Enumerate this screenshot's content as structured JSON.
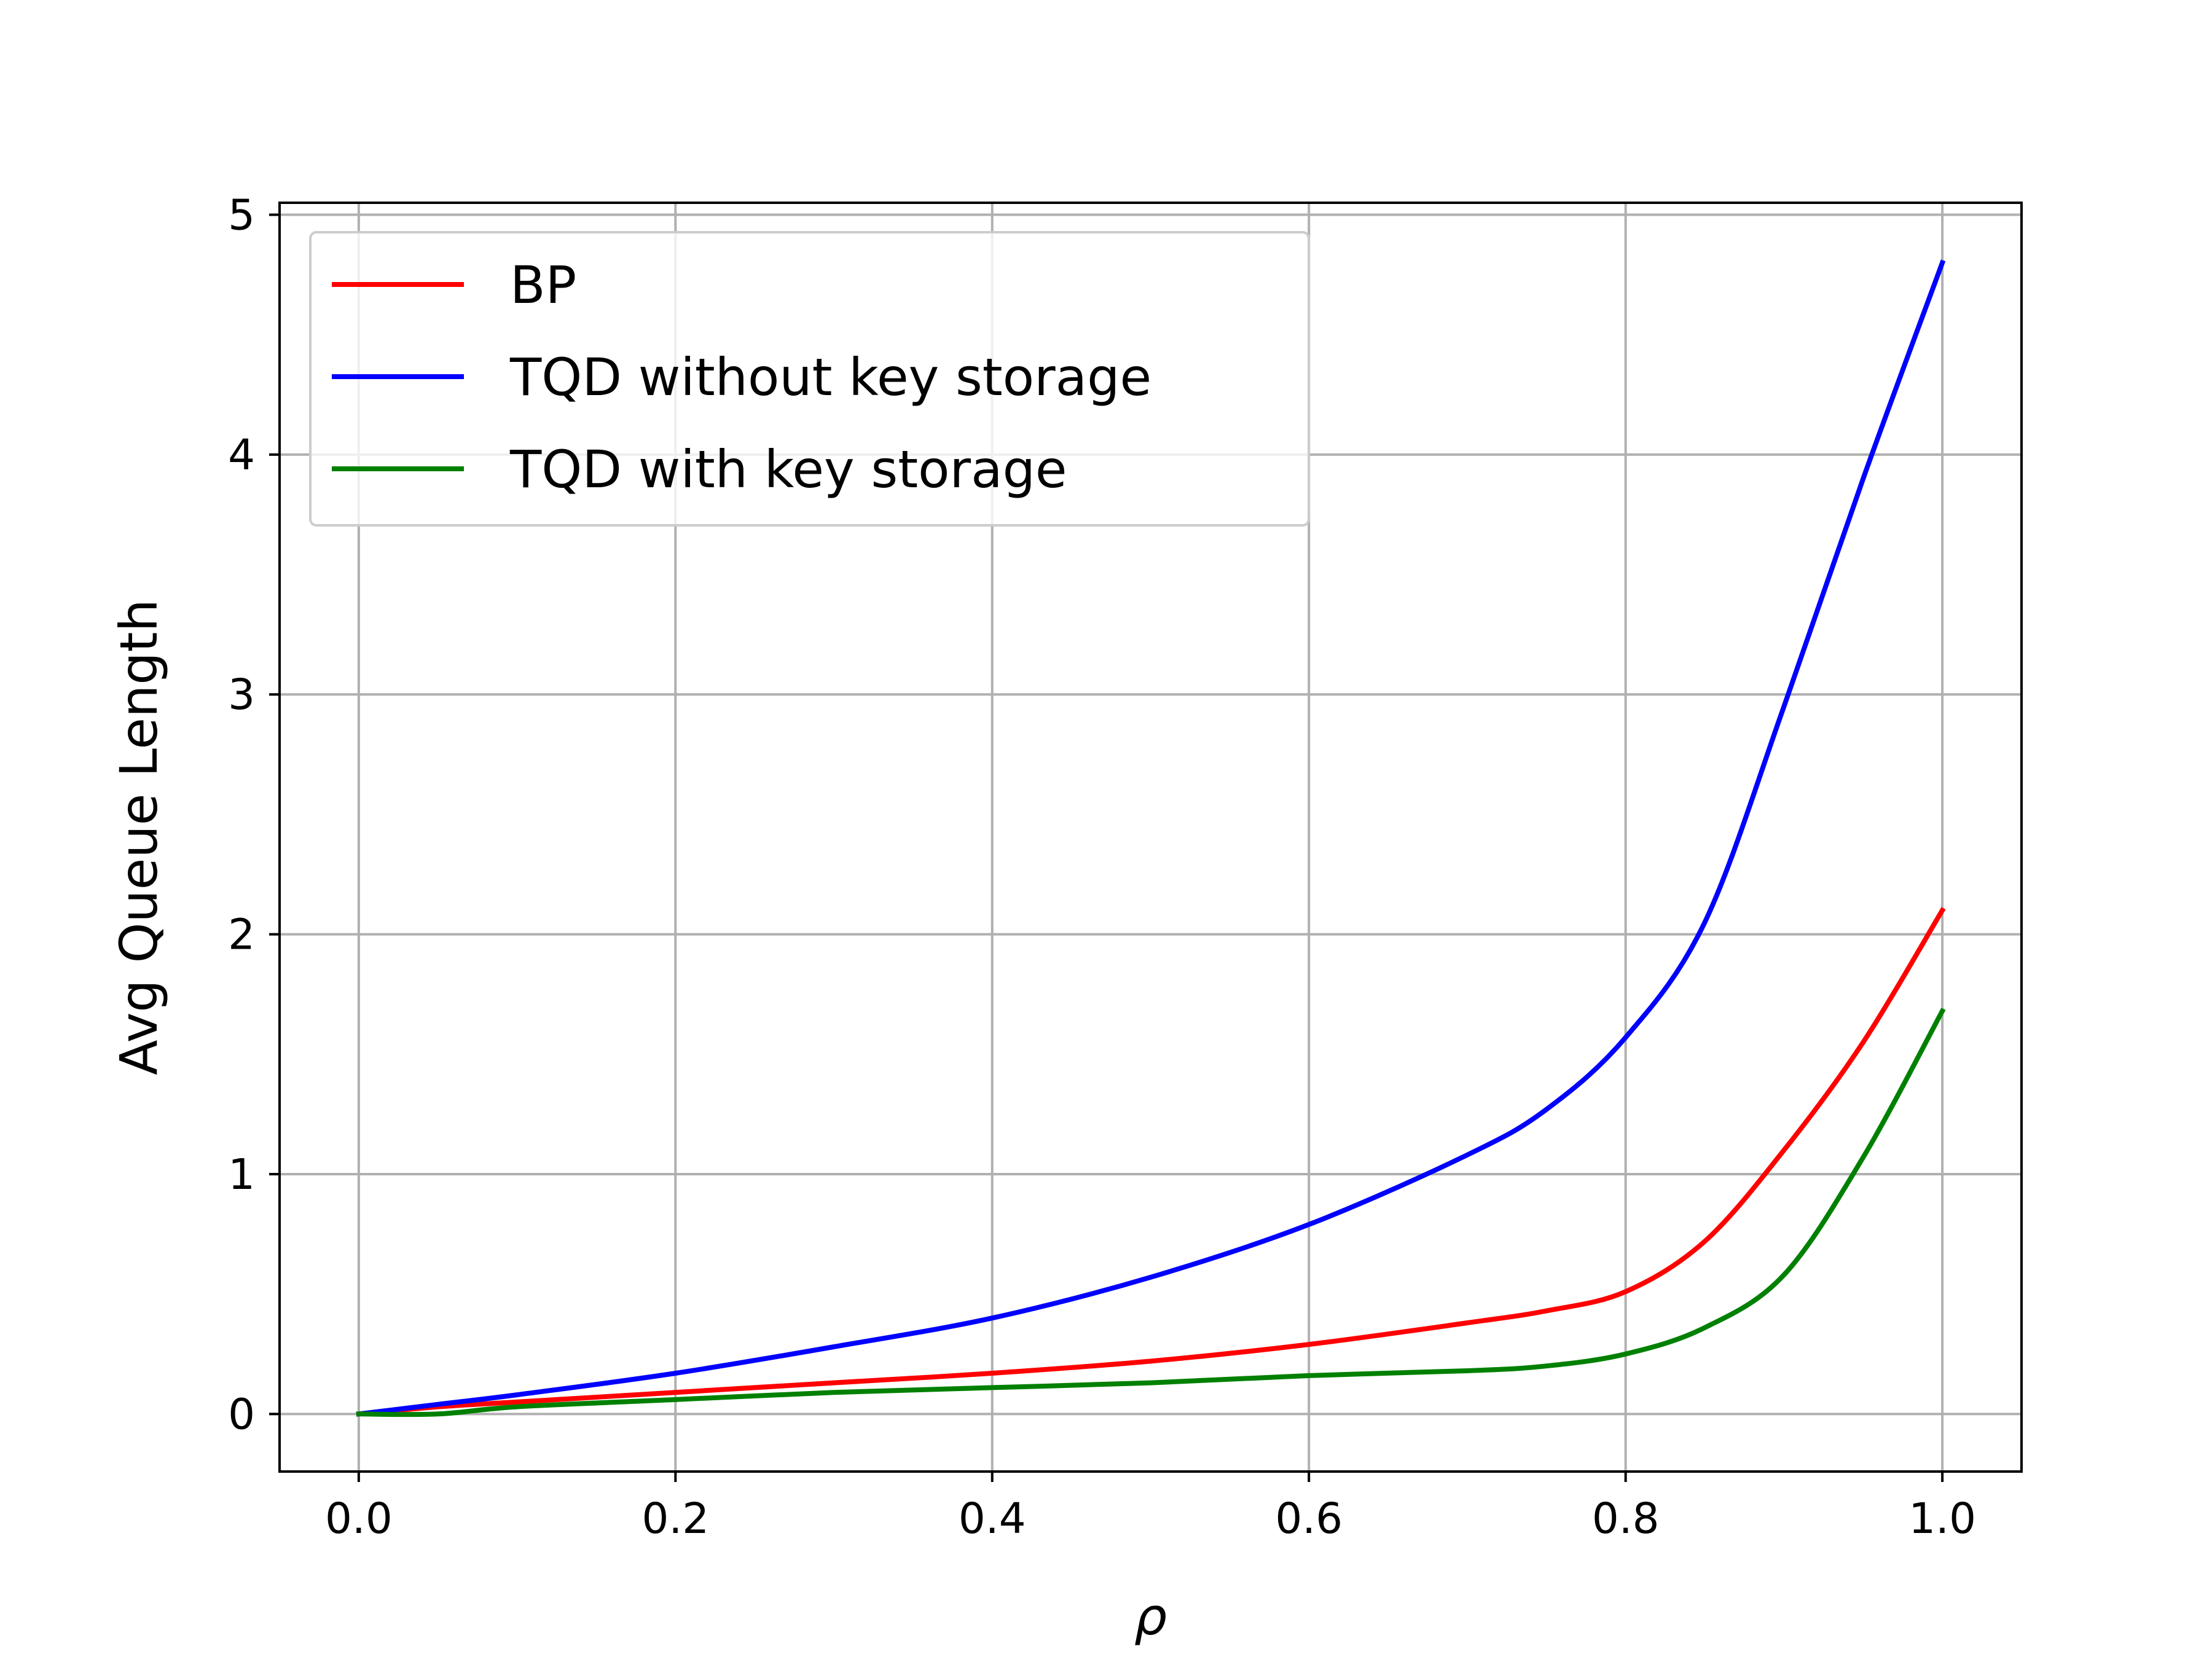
{
  "chart_data": {
    "type": "line",
    "title": "",
    "xlabel": "ρ",
    "ylabel": "Avg Queue Length",
    "xlim": [
      -0.05,
      1.05
    ],
    "ylim": [
      -0.24,
      5.05
    ],
    "xticks": [
      0.0,
      0.2,
      0.4,
      0.6,
      0.8,
      1.0
    ],
    "xtick_labels": [
      "0.0",
      "0.2",
      "0.4",
      "0.6",
      "0.8",
      "1.0"
    ],
    "yticks": [
      0,
      1,
      2,
      3,
      4,
      5
    ],
    "ytick_labels": [
      "0",
      "1",
      "2",
      "3",
      "4",
      "5"
    ],
    "grid": true,
    "legend_position": "upper-left",
    "x": [
      0.0,
      0.05,
      0.1,
      0.2,
      0.3,
      0.4,
      0.5,
      0.6,
      0.7,
      0.75,
      0.8,
      0.85,
      0.9,
      0.95,
      1.0
    ],
    "series": [
      {
        "name": "BP",
        "color": "#ff0000",
        "values": [
          0.0,
          0.03,
          0.05,
          0.09,
          0.13,
          0.17,
          0.22,
          0.29,
          0.38,
          0.43,
          0.51,
          0.72,
          1.1,
          1.55,
          2.1
        ]
      },
      {
        "name": "TQD without key storage",
        "color": "#0000ff",
        "values": [
          0.0,
          0.04,
          0.08,
          0.17,
          0.28,
          0.4,
          0.57,
          0.79,
          1.08,
          1.27,
          1.57,
          2.05,
          2.95,
          3.9,
          4.8
        ]
      },
      {
        "name": "TQD with key storage",
        "color": "#008000",
        "values": [
          0.0,
          0.0,
          0.03,
          0.06,
          0.09,
          0.11,
          0.13,
          0.16,
          0.18,
          0.2,
          0.25,
          0.36,
          0.58,
          1.07,
          1.68
        ]
      }
    ]
  }
}
